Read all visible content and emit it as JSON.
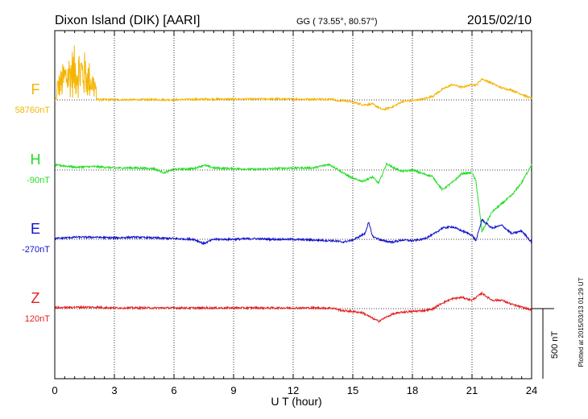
{
  "header": {
    "station": "Dixon Island (DIK)  [AARI]",
    "coords": "GG ( 73.55°,  80.57°)",
    "date": "2015/02/10"
  },
  "plotted_note": "Plotted at 2015/03/13 01:29 UT",
  "colors": {
    "F": "#f5b400",
    "H": "#22dd22",
    "E": "#1010cc",
    "Z": "#e02020"
  },
  "chart_data": {
    "type": "line",
    "xlabel": "U T (hour)",
    "xlim": [
      0,
      24
    ],
    "x_ticks": [
      0,
      3,
      6,
      9,
      12,
      15,
      18,
      21,
      24
    ],
    "scale_bar": {
      "label": "500 nT",
      "value_nT": 500
    },
    "series": [
      {
        "name": "F",
        "baseline_label": "58760nT",
        "baseline_nT": 58760,
        "deviation_nT": [
          [
            0.0,
            0
          ],
          [
            0.5,
            8
          ],
          [
            1.0,
            10
          ],
          [
            1.5,
            12
          ],
          [
            2.0,
            5
          ],
          [
            2.2,
            2
          ],
          [
            3,
            2
          ],
          [
            4,
            1
          ],
          [
            5,
            2
          ],
          [
            6,
            1
          ],
          [
            7,
            4
          ],
          [
            8,
            6
          ],
          [
            9,
            5
          ],
          [
            10,
            6
          ],
          [
            11,
            7
          ],
          [
            12,
            5
          ],
          [
            13,
            5
          ],
          [
            14,
            6
          ],
          [
            14.2,
            -8
          ],
          [
            14.5,
            -4
          ],
          [
            15,
            -15
          ],
          [
            15.5,
            -35
          ],
          [
            16,
            -30
          ],
          [
            16.5,
            -70
          ],
          [
            17,
            -50
          ],
          [
            17.5,
            -10
          ],
          [
            18,
            -5
          ],
          [
            18.5,
            5
          ],
          [
            19,
            25
          ],
          [
            19.5,
            75
          ],
          [
            20,
            110
          ],
          [
            20.5,
            90
          ],
          [
            21,
            110
          ],
          [
            21.2,
            105
          ],
          [
            21.5,
            150
          ],
          [
            22,
            120
          ],
          [
            22.5,
            85
          ],
          [
            23,
            70
          ],
          [
            23.5,
            40
          ],
          [
            24,
            10
          ]
        ],
        "noise_interval": {
          "start_hour": 0.1,
          "end_hour": 2.1,
          "amplitude_nT": 380
        }
      },
      {
        "name": "H",
        "baseline_label": "-90nT",
        "baseline_nT": -90,
        "deviation_nT": [
          [
            0.0,
            35
          ],
          [
            0.5,
            30
          ],
          [
            1,
            20
          ],
          [
            2,
            25
          ],
          [
            3,
            15
          ],
          [
            4,
            15
          ],
          [
            5,
            10
          ],
          [
            5.5,
            -20
          ],
          [
            6,
            5
          ],
          [
            7,
            10
          ],
          [
            7.5,
            35
          ],
          [
            8,
            15
          ],
          [
            9,
            10
          ],
          [
            10,
            5
          ],
          [
            11,
            10
          ],
          [
            12,
            15
          ],
          [
            13,
            15
          ],
          [
            13.8,
            40
          ],
          [
            14.2,
            10
          ],
          [
            14.5,
            -20
          ],
          [
            15,
            -60
          ],
          [
            15.5,
            -80
          ],
          [
            16,
            -50
          ],
          [
            16.3,
            -95
          ],
          [
            16.7,
            45
          ],
          [
            17,
            20
          ],
          [
            17.5,
            -10
          ],
          [
            18,
            0
          ],
          [
            18.5,
            -25
          ],
          [
            19,
            -45
          ],
          [
            19.5,
            -140
          ],
          [
            20,
            -90
          ],
          [
            20.5,
            -25
          ],
          [
            21,
            -20
          ],
          [
            21.2,
            -80
          ],
          [
            21.5,
            -440
          ],
          [
            22,
            -300
          ],
          [
            22.5,
            -240
          ],
          [
            23,
            -180
          ],
          [
            23.5,
            -90
          ],
          [
            24,
            40
          ]
        ]
      },
      {
        "name": "E",
        "baseline_label": "-270nT",
        "baseline_nT": -270,
        "deviation_nT": [
          [
            0.0,
            5
          ],
          [
            0.5,
            10
          ],
          [
            1,
            15
          ],
          [
            2,
            15
          ],
          [
            3,
            10
          ],
          [
            4,
            15
          ],
          [
            5,
            10
          ],
          [
            6,
            5
          ],
          [
            7,
            0
          ],
          [
            7.5,
            -30
          ],
          [
            8,
            0
          ],
          [
            9,
            0
          ],
          [
            10,
            5
          ],
          [
            11,
            0
          ],
          [
            12,
            0
          ],
          [
            13,
            -5
          ],
          [
            14,
            -10
          ],
          [
            14.5,
            -20
          ],
          [
            15,
            -5
          ],
          [
            15.6,
            40
          ],
          [
            15.8,
            120
          ],
          [
            16,
            20
          ],
          [
            16.5,
            -10
          ],
          [
            17,
            -20
          ],
          [
            17.5,
            -5
          ],
          [
            18,
            -10
          ],
          [
            18.5,
            0
          ],
          [
            19,
            30
          ],
          [
            19.5,
            80
          ],
          [
            20,
            90
          ],
          [
            20.5,
            60
          ],
          [
            21,
            30
          ],
          [
            21.2,
            -10
          ],
          [
            21.5,
            140
          ],
          [
            22,
            80
          ],
          [
            22.5,
            100
          ],
          [
            23,
            40
          ],
          [
            23.5,
            60
          ],
          [
            24,
            -20
          ]
        ]
      },
      {
        "name": "Z",
        "baseline_label": "120nT",
        "baseline_nT": 120,
        "deviation_nT": [
          [
            0.0,
            5
          ],
          [
            1,
            10
          ],
          [
            2,
            10
          ],
          [
            3,
            5
          ],
          [
            4,
            5
          ],
          [
            5,
            5
          ],
          [
            6,
            5
          ],
          [
            7,
            5
          ],
          [
            8,
            5
          ],
          [
            9,
            5
          ],
          [
            10,
            5
          ],
          [
            11,
            5
          ],
          [
            12,
            5
          ],
          [
            13,
            5
          ],
          [
            14,
            3
          ],
          [
            14.5,
            -15
          ],
          [
            15,
            -20
          ],
          [
            15.5,
            -30
          ],
          [
            16,
            -70
          ],
          [
            16.3,
            -90
          ],
          [
            16.7,
            -60
          ],
          [
            17,
            -40
          ],
          [
            17.5,
            -25
          ],
          [
            18,
            -20
          ],
          [
            18.5,
            -15
          ],
          [
            19,
            -5
          ],
          [
            19.5,
            40
          ],
          [
            20,
            70
          ],
          [
            20.5,
            80
          ],
          [
            21,
            60
          ],
          [
            21.5,
            110
          ],
          [
            22,
            60
          ],
          [
            22.5,
            60
          ],
          [
            23,
            30
          ],
          [
            23.5,
            10
          ],
          [
            24,
            -10
          ]
        ]
      }
    ]
  }
}
